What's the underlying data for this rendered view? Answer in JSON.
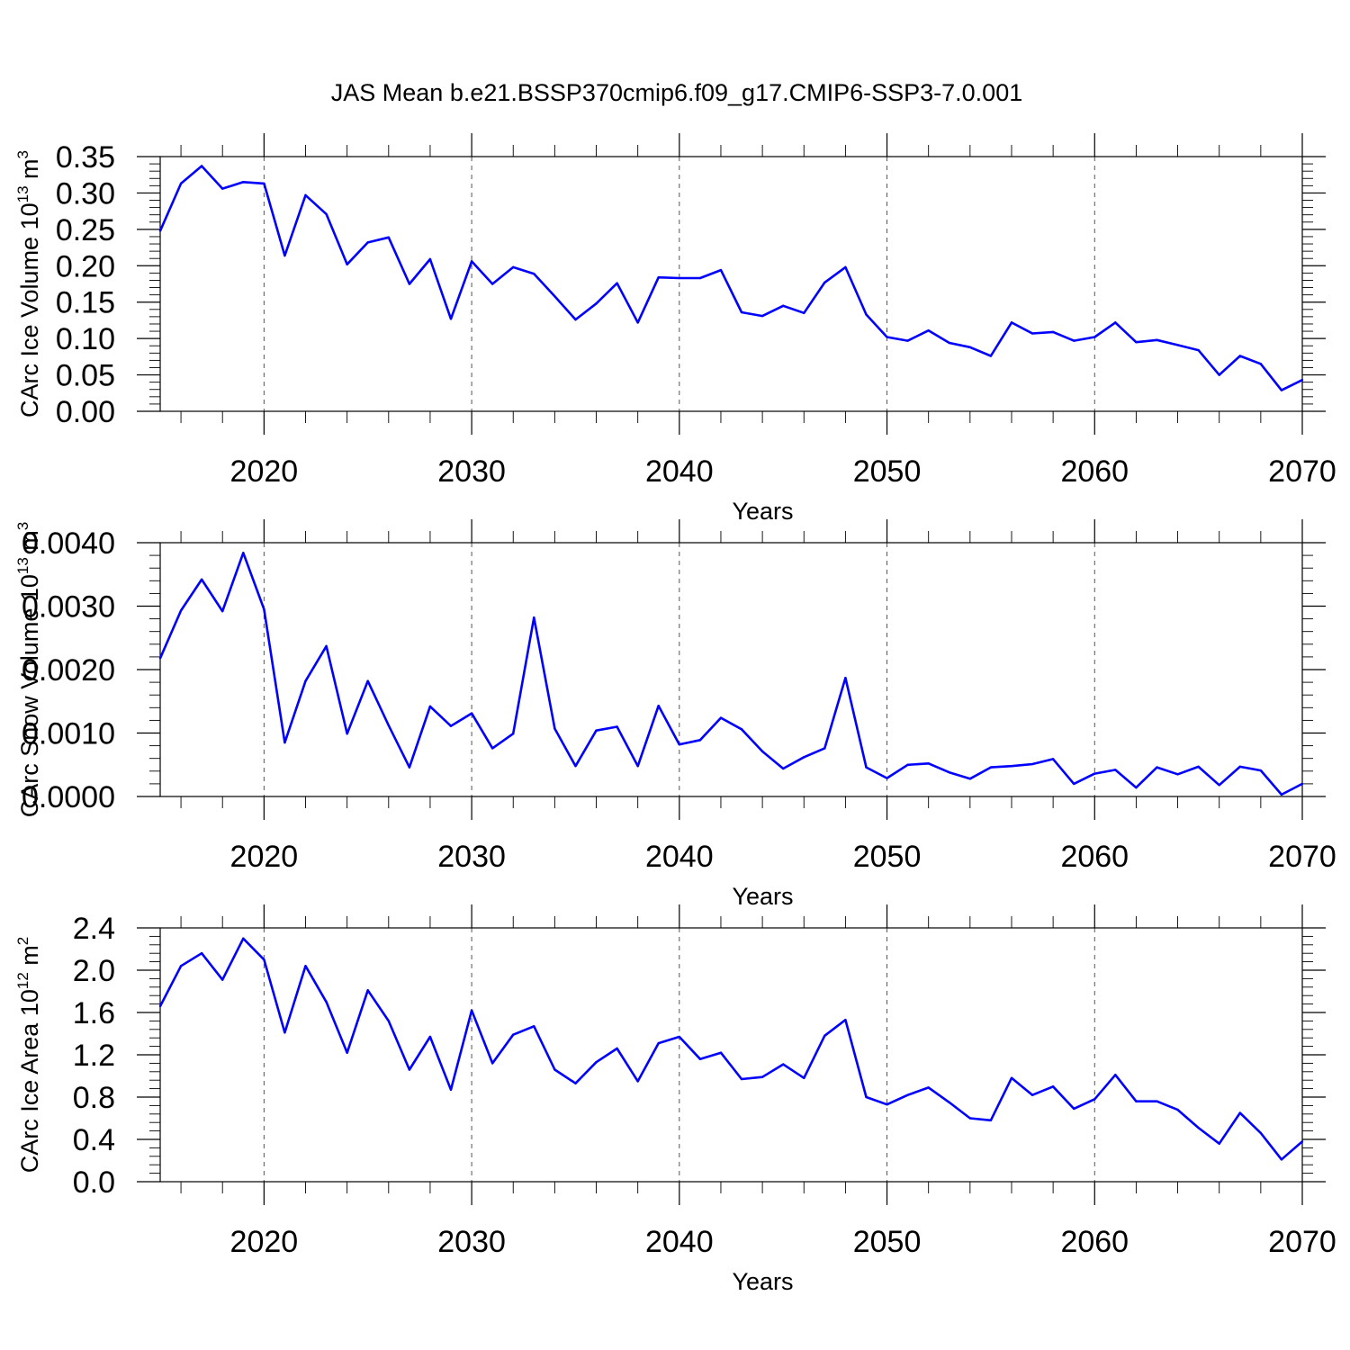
{
  "title": "JAS Mean b.e21.BSSP370cmip6.f09_g17.CMIP6-SSP3-7.0.001",
  "colors": {
    "line": "#0000ff",
    "axes": "#000000",
    "gridline": "#555555"
  },
  "chart_data": [
    {
      "type": "line",
      "ylabel_main": "CArc Ice Volume 10",
      "ylabel_exp": "13",
      "ylabel_tail": " m",
      "ylabel_unit_exp": "3",
      "xlabel": "Years",
      "xlim": [
        2015,
        2070
      ],
      "ylim": [
        0,
        0.35
      ],
      "yticks": [
        0.0,
        0.05,
        0.1,
        0.15,
        0.2,
        0.25,
        0.3,
        0.35
      ],
      "ytick_labels": [
        "0.00",
        "0.05",
        "0.10",
        "0.15",
        "0.20",
        "0.25",
        "0.30",
        "0.35"
      ],
      "xticks": [
        2020,
        2030,
        2040,
        2050,
        2060,
        2070
      ],
      "xtick_labels": [
        "2020",
        "2030",
        "2040",
        "2050",
        "2060",
        "2070"
      ],
      "vertical_reference_lines": [
        2020,
        2030,
        2040,
        2050,
        2060
      ],
      "x": [
        2015,
        2016,
        2017,
        2018,
        2019,
        2020,
        2021,
        2022,
        2023,
        2024,
        2025,
        2026,
        2027,
        2028,
        2029,
        2030,
        2031,
        2032,
        2033,
        2034,
        2035,
        2036,
        2037,
        2038,
        2039,
        2040,
        2041,
        2042,
        2043,
        2044,
        2045,
        2046,
        2047,
        2048,
        2049,
        2050,
        2051,
        2052,
        2053,
        2054,
        2055,
        2056,
        2057,
        2058,
        2059,
        2060,
        2061,
        2062,
        2063,
        2064,
        2065,
        2066,
        2067,
        2068,
        2069,
        2070
      ],
      "y": [
        0.248,
        0.313,
        0.337,
        0.306,
        0.315,
        0.313,
        0.214,
        0.297,
        0.271,
        0.202,
        0.232,
        0.239,
        0.175,
        0.209,
        0.127,
        0.206,
        0.175,
        0.198,
        0.189,
        0.158,
        0.126,
        0.148,
        0.176,
        0.122,
        0.184,
        0.183,
        0.183,
        0.194,
        0.136,
        0.131,
        0.145,
        0.135,
        0.177,
        0.198,
        0.133,
        0.102,
        0.097,
        0.111,
        0.094,
        0.088,
        0.076,
        0.122,
        0.107,
        0.109,
        0.097,
        0.102,
        0.122,
        0.095,
        0.098,
        0.091,
        0.084,
        0.05,
        0.076,
        0.065,
        0.029,
        0.043
      ]
    },
    {
      "type": "line",
      "ylabel_main": "CArc Snow Volume 10",
      "ylabel_exp": "13",
      "ylabel_tail": " m",
      "ylabel_unit_exp": "3",
      "xlabel": "Years",
      "xlim": [
        2015,
        2070
      ],
      "ylim": [
        0,
        0.004
      ],
      "yticks": [
        0.0,
        0.001,
        0.002,
        0.003,
        0.004
      ],
      "ytick_labels": [
        "0.0000",
        "0.0010",
        "0.0020",
        "0.0030",
        "0.0040"
      ],
      "xticks": [
        2020,
        2030,
        2040,
        2050,
        2060,
        2070
      ],
      "xtick_labels": [
        "2020",
        "2030",
        "2040",
        "2050",
        "2060",
        "2070"
      ],
      "vertical_reference_lines": [
        2020,
        2030,
        2040,
        2050,
        2060
      ],
      "x": [
        2015,
        2016,
        2017,
        2018,
        2019,
        2020,
        2021,
        2022,
        2023,
        2024,
        2025,
        2026,
        2027,
        2028,
        2029,
        2030,
        2031,
        2032,
        2033,
        2034,
        2035,
        2036,
        2037,
        2038,
        2039,
        2040,
        2041,
        2042,
        2043,
        2044,
        2045,
        2046,
        2047,
        2048,
        2049,
        2050,
        2051,
        2052,
        2053,
        2054,
        2055,
        2056,
        2057,
        2058,
        2059,
        2060,
        2061,
        2062,
        2063,
        2064,
        2065,
        2066,
        2067,
        2068,
        2069,
        2070
      ],
      "y": [
        0.00218,
        0.00293,
        0.00342,
        0.00292,
        0.00384,
        0.00295,
        0.00085,
        0.00182,
        0.00237,
        0.00099,
        0.00182,
        0.00112,
        0.00046,
        0.00142,
        0.00111,
        0.00131,
        0.00076,
        0.00099,
        0.00282,
        0.00107,
        0.00048,
        0.00104,
        0.0011,
        0.00048,
        0.00143,
        0.00082,
        0.00089,
        0.00124,
        0.00106,
        0.00071,
        0.00044,
        0.00062,
        0.00076,
        0.00187,
        0.00046,
        0.00029,
        0.0005,
        0.00052,
        0.00038,
        0.00028,
        0.00046,
        0.00048,
        0.00051,
        0.00059,
        0.0002,
        0.00036,
        0.00042,
        0.00014,
        0.00046,
        0.00035,
        0.00047,
        0.00018,
        0.00047,
        0.00041,
        3e-05,
        0.0002
      ]
    },
    {
      "type": "line",
      "ylabel_main": "CArc Ice Area 10",
      "ylabel_exp": "12",
      "ylabel_tail": " m",
      "ylabel_unit_exp": "2",
      "xlabel": "Years",
      "xlim": [
        2015,
        2070
      ],
      "ylim": [
        0,
        2.4
      ],
      "yticks": [
        0.0,
        0.4,
        0.8,
        1.2,
        1.6,
        2.0,
        2.4
      ],
      "ytick_labels": [
        "0.0",
        "0.4",
        "0.8",
        "1.2",
        "1.6",
        "2.0",
        "2.4"
      ],
      "xticks": [
        2020,
        2030,
        2040,
        2050,
        2060,
        2070
      ],
      "xtick_labels": [
        "2020",
        "2030",
        "2040",
        "2050",
        "2060",
        "2070"
      ],
      "vertical_reference_lines": [
        2020,
        2030,
        2040,
        2050,
        2060
      ],
      "x": [
        2015,
        2016,
        2017,
        2018,
        2019,
        2020,
        2021,
        2022,
        2023,
        2024,
        2025,
        2026,
        2027,
        2028,
        2029,
        2030,
        2031,
        2032,
        2033,
        2034,
        2035,
        2036,
        2037,
        2038,
        2039,
        2040,
        2041,
        2042,
        2043,
        2044,
        2045,
        2046,
        2047,
        2048,
        2049,
        2050,
        2051,
        2052,
        2053,
        2054,
        2055,
        2056,
        2057,
        2058,
        2059,
        2060,
        2061,
        2062,
        2063,
        2064,
        2065,
        2066,
        2067,
        2068,
        2069,
        2070
      ],
      "y": [
        1.66,
        2.04,
        2.16,
        1.91,
        2.3,
        2.1,
        1.41,
        2.04,
        1.7,
        1.22,
        1.81,
        1.52,
        1.06,
        1.37,
        0.87,
        1.62,
        1.12,
        1.39,
        1.47,
        1.06,
        0.93,
        1.13,
        1.26,
        0.95,
        1.31,
        1.37,
        1.16,
        1.22,
        0.97,
        0.99,
        1.11,
        0.98,
        1.38,
        1.53,
        0.8,
        0.73,
        0.82,
        0.89,
        0.75,
        0.6,
        0.58,
        0.98,
        0.82,
        0.9,
        0.69,
        0.78,
        1.01,
        0.76,
        0.76,
        0.68,
        0.51,
        0.36,
        0.65,
        0.46,
        0.21,
        0.38
      ]
    }
  ]
}
